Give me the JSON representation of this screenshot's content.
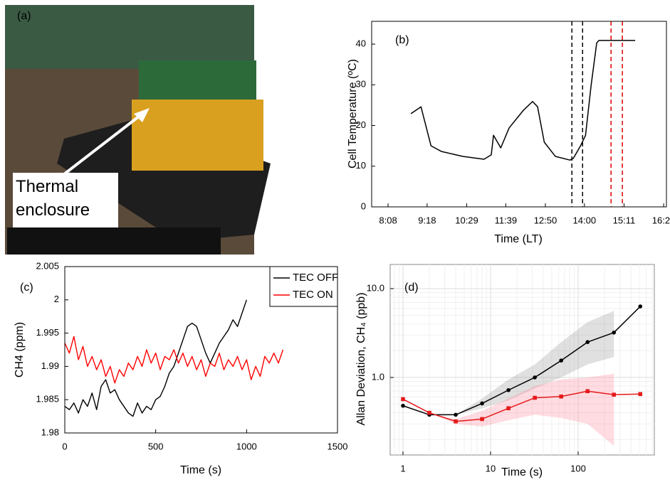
{
  "photo": {
    "label": "(a)",
    "annotation": "Thermal enclosure"
  },
  "chart_data": [
    {
      "type": "line",
      "panel_label": "(b)",
      "xlabel": "Time (LT)",
      "ylabel": "Cell Temperature (ºC)",
      "x": [
        529,
        547,
        565,
        584,
        622,
        660,
        673,
        677,
        690,
        705,
        731,
        747,
        756,
        768,
        788,
        814,
        820,
        833,
        842,
        852,
        862,
        866,
        931
      ],
      "values": [
        22.9,
        24.6,
        15,
        13.6,
        12.4,
        11.7,
        12.8,
        17.6,
        14.5,
        19.4,
        23.8,
        25.9,
        24.6,
        15.9,
        12.4,
        11.5,
        11.9,
        15,
        17.6,
        29.9,
        40.3,
        40.9,
        40.9
      ],
      "color": "#000000",
      "xlim": [
        458.6,
        987
      ],
      "ylim": [
        0,
        45.6
      ],
      "xticks": [
        {
          "value": 488,
          "label": "8:08"
        },
        {
          "value": 558,
          "label": "9:18"
        },
        {
          "value": 629,
          "label": "10:29"
        },
        {
          "value": 699,
          "label": "11:39"
        },
        {
          "value": 770,
          "label": "12:50"
        },
        {
          "value": 840,
          "label": "14:00"
        },
        {
          "value": 911,
          "label": "15:11"
        },
        {
          "value": 982,
          "label": "16:22"
        }
      ],
      "yticks": [
        0,
        10,
        20,
        30,
        40
      ],
      "vlines": [
        {
          "x": 817.5,
          "color": "#000000"
        },
        {
          "x": 836.7,
          "color": "#000000"
        },
        {
          "x": 887.7,
          "color": "#e00000"
        },
        {
          "x": 908,
          "color": "#e00000"
        }
      ],
      "grid": false
    },
    {
      "type": "line",
      "panel_label": "(c)",
      "xlabel": "Time (s)",
      "ylabel": "CH4 (ppm)",
      "series": [
        {
          "name": "TEC OFF",
          "color": "#000000",
          "x": [
            0,
            25,
            50,
            75,
            100,
            125,
            150,
            175,
            200,
            225,
            250,
            275,
            300,
            325,
            350,
            375,
            400,
            425,
            450,
            475,
            500,
            525,
            550,
            575,
            600,
            625,
            650,
            675,
            700,
            725,
            750,
            775,
            800,
            825,
            850,
            875,
            900,
            925,
            950,
            975,
            1000
          ],
          "values": [
            1.984,
            1.9835,
            1.9845,
            1.983,
            1.985,
            1.984,
            1.986,
            1.9835,
            1.987,
            1.988,
            1.986,
            1.9865,
            1.985,
            1.984,
            1.983,
            1.9825,
            1.9845,
            1.983,
            1.984,
            1.9835,
            1.985,
            1.9855,
            1.987,
            1.989,
            1.99,
            1.992,
            1.994,
            1.996,
            1.9965,
            1.996,
            1.994,
            1.992,
            1.9905,
            1.992,
            1.9935,
            1.9945,
            1.9955,
            1.997,
            1.996,
            1.998,
            2.0
          ]
        },
        {
          "name": "TEC ON",
          "color": "#ff0000",
          "x": [
            0,
            25,
            50,
            75,
            100,
            125,
            150,
            175,
            200,
            225,
            250,
            275,
            300,
            325,
            350,
            375,
            400,
            425,
            450,
            475,
            500,
            525,
            550,
            575,
            600,
            625,
            650,
            675,
            700,
            725,
            750,
            775,
            800,
            825,
            850,
            875,
            900,
            925,
            950,
            975,
            1000,
            1025,
            1050,
            1075,
            1100,
            1125,
            1150,
            1175,
            1200
          ],
          "values": [
            1.9935,
            1.992,
            1.9945,
            1.991,
            1.993,
            1.99,
            1.9915,
            1.9895,
            1.991,
            1.9885,
            1.99,
            1.9875,
            1.9895,
            1.9885,
            1.9905,
            1.9895,
            1.9915,
            1.99,
            1.9925,
            1.9905,
            1.992,
            1.9895,
            1.9915,
            1.991,
            1.9925,
            1.9905,
            1.992,
            1.99,
            1.9915,
            1.9895,
            1.991,
            1.9885,
            1.9905,
            1.99,
            1.992,
            1.9895,
            1.991,
            1.99,
            1.9915,
            1.9895,
            1.991,
            1.988,
            1.99,
            1.9885,
            1.9915,
            1.9905,
            1.992,
            1.9905,
            1.9925
          ]
        }
      ],
      "xlim": [
        0,
        1500
      ],
      "ylim": [
        1.98,
        2.005
      ],
      "xticks": [
        0,
        500,
        1000,
        1500
      ],
      "yticks": [
        1.98,
        1.985,
        1.99,
        1.995,
        2,
        2.005
      ],
      "legend": "top-right",
      "grid": false
    },
    {
      "type": "line",
      "panel_label": "(d)",
      "xlabel": "Time  (s)",
      "ylabel": "Allan Deviation, CH₄ (ppb)",
      "x": [
        1,
        2,
        4,
        8,
        16,
        32,
        64,
        128,
        256,
        512
      ],
      "series": [
        {
          "color": "#000000",
          "marker": "circle",
          "values": [
            0.48,
            0.38,
            0.38,
            0.51,
            0.72,
            1.0,
            1.55,
            2.5,
            3.2,
            6.3
          ],
          "band_low": [
            null,
            null,
            0.38,
            0.45,
            0.55,
            0.75,
            1.0,
            1.4,
            1.7,
            null
          ],
          "band_high": [
            null,
            null,
            0.38,
            0.58,
            0.95,
            1.4,
            2.5,
            4.2,
            5.6,
            null
          ],
          "band_color": "#999999"
        },
        {
          "color": "#e41a1c",
          "marker": "square",
          "values": [
            0.57,
            0.4,
            0.32,
            0.34,
            0.45,
            0.59,
            0.61,
            0.7,
            0.64,
            0.65
          ],
          "band_low": [
            null,
            0.4,
            0.3,
            0.28,
            0.33,
            0.38,
            0.35,
            0.3,
            0.17,
            null
          ],
          "band_high": [
            null,
            0.4,
            0.34,
            0.42,
            0.58,
            0.8,
            0.95,
            1.0,
            1.1,
            null
          ],
          "band_color": "#ff8a9a"
        }
      ],
      "xlim": [
        0.714,
        741
      ],
      "ylim": [
        0.134,
        18.7
      ],
      "xlog": true,
      "ylog": true,
      "xticks": [
        1,
        10,
        100
      ],
      "yticks": [
        {
          "value": 1,
          "label": "1.0"
        },
        {
          "value": 10,
          "label": "10.0"
        }
      ],
      "grid": true
    }
  ]
}
